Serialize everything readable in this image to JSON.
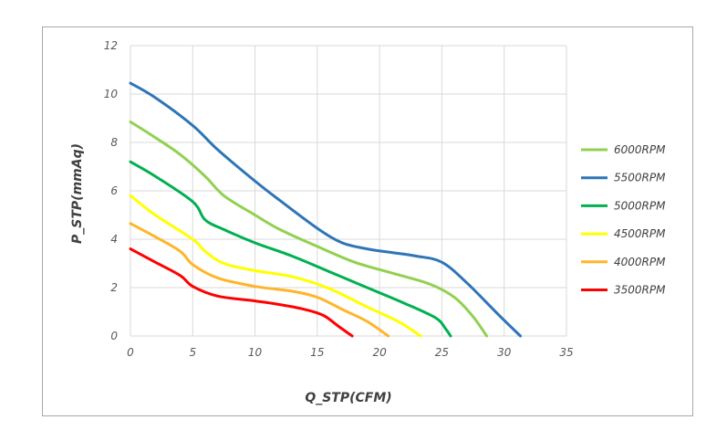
{
  "chart_data": {
    "type": "line",
    "xlabel": "Q_STP(CFM)",
    "ylabel": "P_STP(mmAq)",
    "xlim": [
      0,
      35
    ],
    "ylim": [
      0,
      12
    ],
    "x_ticks": [
      "0",
      "5",
      "10",
      "15",
      "20",
      "25",
      "30",
      "35"
    ],
    "y_ticks": [
      "0",
      "2",
      "4",
      "6",
      "8",
      "10",
      "12"
    ],
    "grid": true,
    "legend_position": "right",
    "series": [
      {
        "name": "6000RPM",
        "color": "#92d050",
        "points": [
          [
            0,
            8.85
          ],
          [
            2,
            8.2
          ],
          [
            4,
            7.5
          ],
          [
            6,
            6.6
          ],
          [
            7.5,
            5.8
          ],
          [
            10,
            5.0
          ],
          [
            12,
            4.4
          ],
          [
            15,
            3.7
          ],
          [
            18,
            3.05
          ],
          [
            21,
            2.6
          ],
          [
            24,
            2.15
          ],
          [
            26,
            1.6
          ],
          [
            27.5,
            0.8
          ],
          [
            28.6,
            0
          ]
        ]
      },
      {
        "name": "5500RPM",
        "color": "#2e75b6",
        "points": [
          [
            0,
            10.45
          ],
          [
            2,
            9.85
          ],
          [
            5,
            8.7
          ],
          [
            7,
            7.7
          ],
          [
            10,
            6.4
          ],
          [
            12,
            5.6
          ],
          [
            15,
            4.45
          ],
          [
            17,
            3.85
          ],
          [
            19,
            3.6
          ],
          [
            21,
            3.45
          ],
          [
            23,
            3.3
          ],
          [
            25,
            3.05
          ],
          [
            27,
            2.2
          ],
          [
            29.5,
            0.9
          ],
          [
            31.3,
            0
          ]
        ]
      },
      {
        "name": "5000RPM",
        "color": "#00b050",
        "points": [
          [
            0,
            7.2
          ],
          [
            2,
            6.6
          ],
          [
            5,
            5.55
          ],
          [
            6,
            4.8
          ],
          [
            7.5,
            4.4
          ],
          [
            10,
            3.85
          ],
          [
            13,
            3.3
          ],
          [
            16,
            2.65
          ],
          [
            19,
            2.0
          ],
          [
            22,
            1.35
          ],
          [
            24.5,
            0.75
          ],
          [
            25.3,
            0.3
          ],
          [
            25.7,
            0
          ]
        ]
      },
      {
        "name": "4500RPM",
        "color": "#ffff00",
        "points": [
          [
            0,
            5.8
          ],
          [
            2,
            5.0
          ],
          [
            5,
            4.0
          ],
          [
            6,
            3.5
          ],
          [
            7.5,
            3.0
          ],
          [
            10,
            2.7
          ],
          [
            13,
            2.45
          ],
          [
            16,
            1.95
          ],
          [
            19,
            1.2
          ],
          [
            21.5,
            0.6
          ],
          [
            23.3,
            0
          ]
        ]
      },
      {
        "name": "4000RPM",
        "color": "#ffb52a",
        "points": [
          [
            0,
            4.65
          ],
          [
            2,
            4.1
          ],
          [
            4,
            3.5
          ],
          [
            5,
            2.95
          ],
          [
            7,
            2.4
          ],
          [
            10,
            2.05
          ],
          [
            13,
            1.85
          ],
          [
            15,
            1.6
          ],
          [
            17,
            1.1
          ],
          [
            19,
            0.6
          ],
          [
            20.7,
            0
          ]
        ]
      },
      {
        "name": "3500RPM",
        "color": "#ff0000",
        "points": [
          [
            0,
            3.6
          ],
          [
            2,
            3.05
          ],
          [
            4,
            2.5
          ],
          [
            5,
            2.05
          ],
          [
            7,
            1.65
          ],
          [
            10,
            1.45
          ],
          [
            12,
            1.3
          ],
          [
            14,
            1.1
          ],
          [
            15.5,
            0.85
          ],
          [
            16.7,
            0.4
          ],
          [
            17.8,
            0
          ]
        ]
      }
    ]
  }
}
